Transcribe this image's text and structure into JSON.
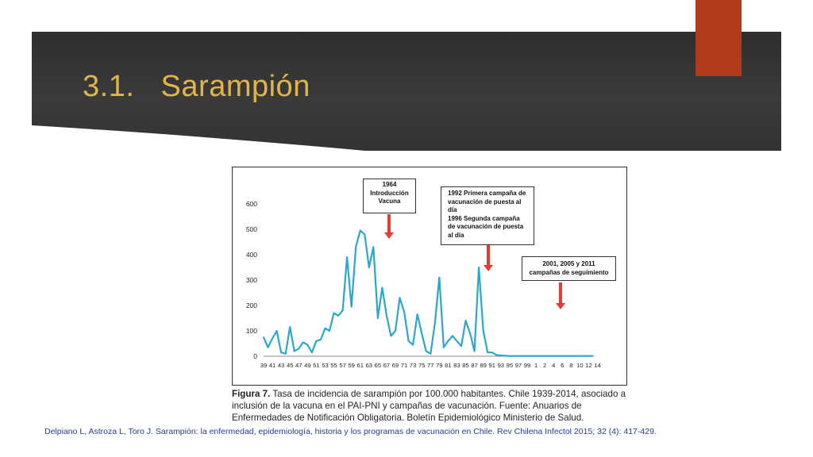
{
  "slide": {
    "title": "3.1.   Sarampión",
    "accent_color": "#b23a1c",
    "title_color": "#e2b54a"
  },
  "annotations": [
    {
      "lines": [
        "1964",
        "Introducción",
        "Vacuna"
      ]
    },
    {
      "lines": [
        "1992 Primera campaña de",
        "vacunación de puesta al",
        "día",
        "1996 Segunda campaña",
        "de vacunación de puesta",
        "al día"
      ]
    },
    {
      "lines": [
        "2001, 2005 y 2011",
        "campañas de seguimiento"
      ]
    }
  ],
  "caption": {
    "label": "Figura 7.",
    "text": "Tasa de incidencia de sarampión por 100.000 habitantes. Chile 1939-2014, asociado a inclusión de la vacuna en el PAI-PNI y campañas de vacunación. Fuente: Anuarios de Enfermedades de Notificación Obligatoria. Boletín Epidemiológico Ministerio de Salud."
  },
  "reference": "Delpiano L, Astroza L, Toro J. Sarampión: la enfermedad, epidemiología, historia y los programas de vacunación en Chile. Rev Chilena Infectol 2015; 32 (4): 417-429.",
  "chart_data": {
    "type": "line",
    "title": "",
    "xlabel": "",
    "ylabel": "",
    "ylim": [
      0,
      600
    ],
    "yticks": [
      "0",
      "100",
      "200",
      "300",
      "400",
      "500",
      "600"
    ],
    "xtick_labels": [
      "39",
      "41",
      "43",
      "45",
      "47",
      "49",
      "51",
      "53",
      "55",
      "57",
      "59",
      "61",
      "63",
      "65",
      "67",
      "69",
      "71",
      "73",
      "75",
      "77",
      "79",
      "81",
      "83",
      "85",
      "87",
      "89",
      "91",
      "93",
      "95",
      "97",
      "99",
      " 1",
      " 2",
      " 4",
      " 6",
      " 8",
      "10",
      "12",
      "14"
    ],
    "color": "#2ba7c9",
    "grid": false,
    "series": [
      {
        "x": [
          1939,
          1940,
          1941,
          1942,
          1943,
          1944,
          1945,
          1946,
          1947,
          1948,
          1949,
          1950,
          1951,
          1952,
          1953,
          1954,
          1955,
          1956,
          1957,
          1958,
          1959,
          1960,
          1961,
          1962,
          1963,
          1964,
          1965,
          1966,
          1967,
          1968,
          1969,
          1970,
          1971,
          1972,
          1973,
          1974,
          1975,
          1976,
          1977,
          1978,
          1979,
          1980,
          1981,
          1982,
          1983,
          1984,
          1985,
          1986,
          1987,
          1988,
          1989,
          1990,
          1991,
          1992,
          1993,
          1994,
          1995,
          1996,
          1997,
          1998,
          1999,
          2000,
          2001,
          2002,
          2003,
          2004,
          2005,
          2006,
          2007,
          2008,
          2009,
          2010,
          2011,
          2012,
          2013,
          2014
        ],
        "values": [
          75,
          35,
          70,
          100,
          15,
          10,
          115,
          20,
          30,
          55,
          45,
          15,
          60,
          65,
          110,
          100,
          170,
          160,
          180,
          390,
          195,
          430,
          495,
          480,
          350,
          430,
          150,
          270,
          160,
          80,
          100,
          230,
          175,
          60,
          45,
          165,
          90,
          20,
          10,
          130,
          310,
          35,
          60,
          80,
          60,
          40,
          140,
          90,
          20,
          350,
          100,
          15,
          15,
          5,
          3,
          2,
          1,
          1,
          1,
          1,
          1,
          1,
          1,
          1,
          1,
          1,
          1,
          1,
          1,
          1,
          1,
          1,
          1,
          1,
          1,
          1
        ]
      }
    ]
  }
}
